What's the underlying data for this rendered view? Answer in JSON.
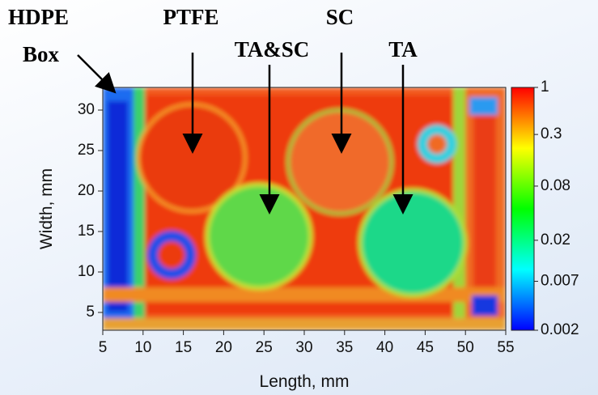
{
  "chart_data": {
    "type": "heatmap",
    "xlabel": "Length, mm",
    "ylabel": "Width, mm",
    "xlim": [
      5,
      55
    ],
    "xticks": [
      5,
      10,
      15,
      20,
      25,
      30,
      35,
      40,
      45,
      50,
      55
    ],
    "ylim": [
      2.8,
      32.8
    ],
    "yticks": [
      5,
      10,
      15,
      20,
      25,
      30
    ],
    "colorbar": {
      "scale": "log",
      "lim": [
        0.002,
        1
      ],
      "ticks": [
        1,
        0.3,
        0.08,
        0.02,
        0.007,
        0.002
      ],
      "colors": [
        "#0000ff",
        "#00ffff",
        "#00ff00",
        "#ffff00",
        "#ff0000"
      ]
    },
    "annotations": [
      "HDPE",
      "Box",
      "PTFE",
      "TA&SC",
      "SC",
      "TA"
    ]
  }
}
